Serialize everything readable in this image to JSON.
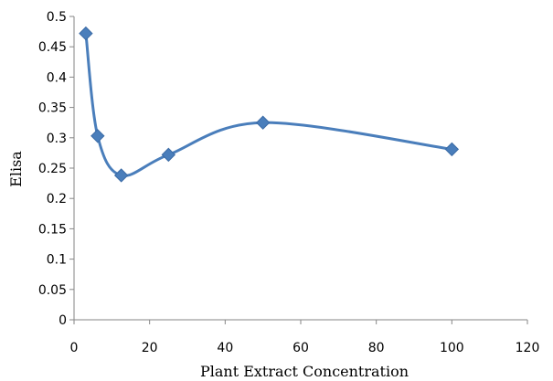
{
  "chart_data": {
    "type": "scatter",
    "xlabel": "Plant Extract Concentration",
    "ylabel": "Elisa",
    "xlim": [
      0,
      120
    ],
    "ylim": [
      0,
      0.5
    ],
    "x_ticks": [
      "0",
      "20",
      "40",
      "60",
      "80",
      "100",
      "120"
    ],
    "y_ticks": [
      "0",
      "0.05",
      "0.1",
      "0.15",
      "0.2",
      "0.25",
      "0.3",
      "0.35",
      "0.4",
      "0.45",
      "0.5"
    ],
    "grid": false,
    "legend": "none",
    "line_style": "smooth",
    "marker": "diamond",
    "color": "#4a7ebb",
    "series": [
      {
        "x": [
          3.125,
          6.25,
          12.5,
          25,
          50,
          100
        ],
        "y": [
          0.472,
          0.303,
          0.238,
          0.272,
          0.325,
          0.281
        ]
      }
    ]
  }
}
